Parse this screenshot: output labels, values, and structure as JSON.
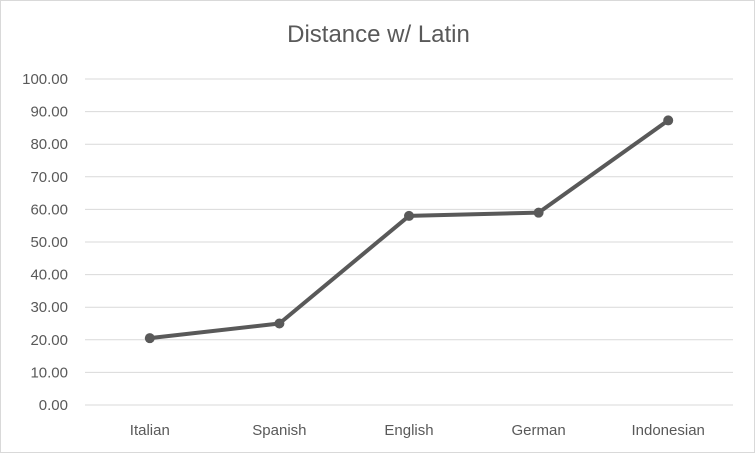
{
  "chart_data": {
    "type": "line",
    "title": "Distance w/ Latin",
    "xlabel": "",
    "ylabel": "",
    "categories": [
      "Italian",
      "Spanish",
      "English",
      "German",
      "Indonesian"
    ],
    "series": [
      {
        "values": [
          20.5,
          25.0,
          58.0,
          59.0,
          87.3
        ]
      }
    ],
    "ylim": [
      0,
      100
    ],
    "ytick_labels": [
      "0.00",
      "10.00",
      "20.00",
      "30.00",
      "40.00",
      "50.00",
      "60.00",
      "70.00",
      "80.00",
      "90.00",
      "100.00"
    ],
    "grid": true,
    "legend": "none",
    "colors": {
      "line": "#595959",
      "grid": "#d9d9d9",
      "text": "#595959"
    }
  }
}
